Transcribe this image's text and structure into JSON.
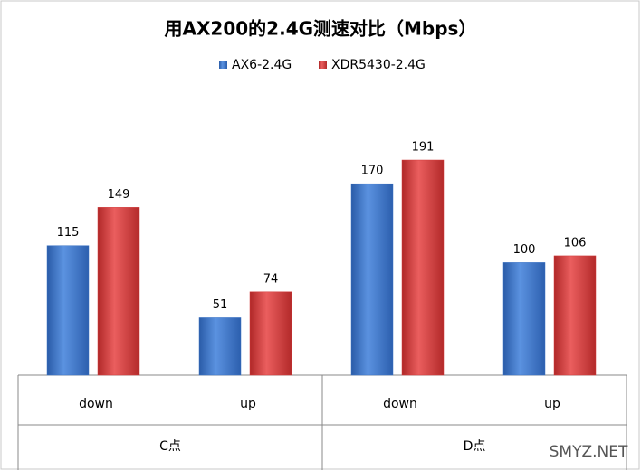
{
  "chart_data": {
    "type": "bar",
    "title": "用AX200的2.4G测速对比（Mbps）",
    "categories": [
      "down",
      "up",
      "down",
      "up"
    ],
    "category_groups": [
      "C点",
      "D点"
    ],
    "series": [
      {
        "name": "AX6-2.4G",
        "color": "#3a72c4",
        "values": [
          115,
          51,
          170,
          100
        ]
      },
      {
        "name": "XDR5430-2.4G",
        "color": "#d23a3a",
        "values": [
          149,
          74,
          191,
          106
        ]
      }
    ]
  },
  "watermark": "SMYZ.NET"
}
